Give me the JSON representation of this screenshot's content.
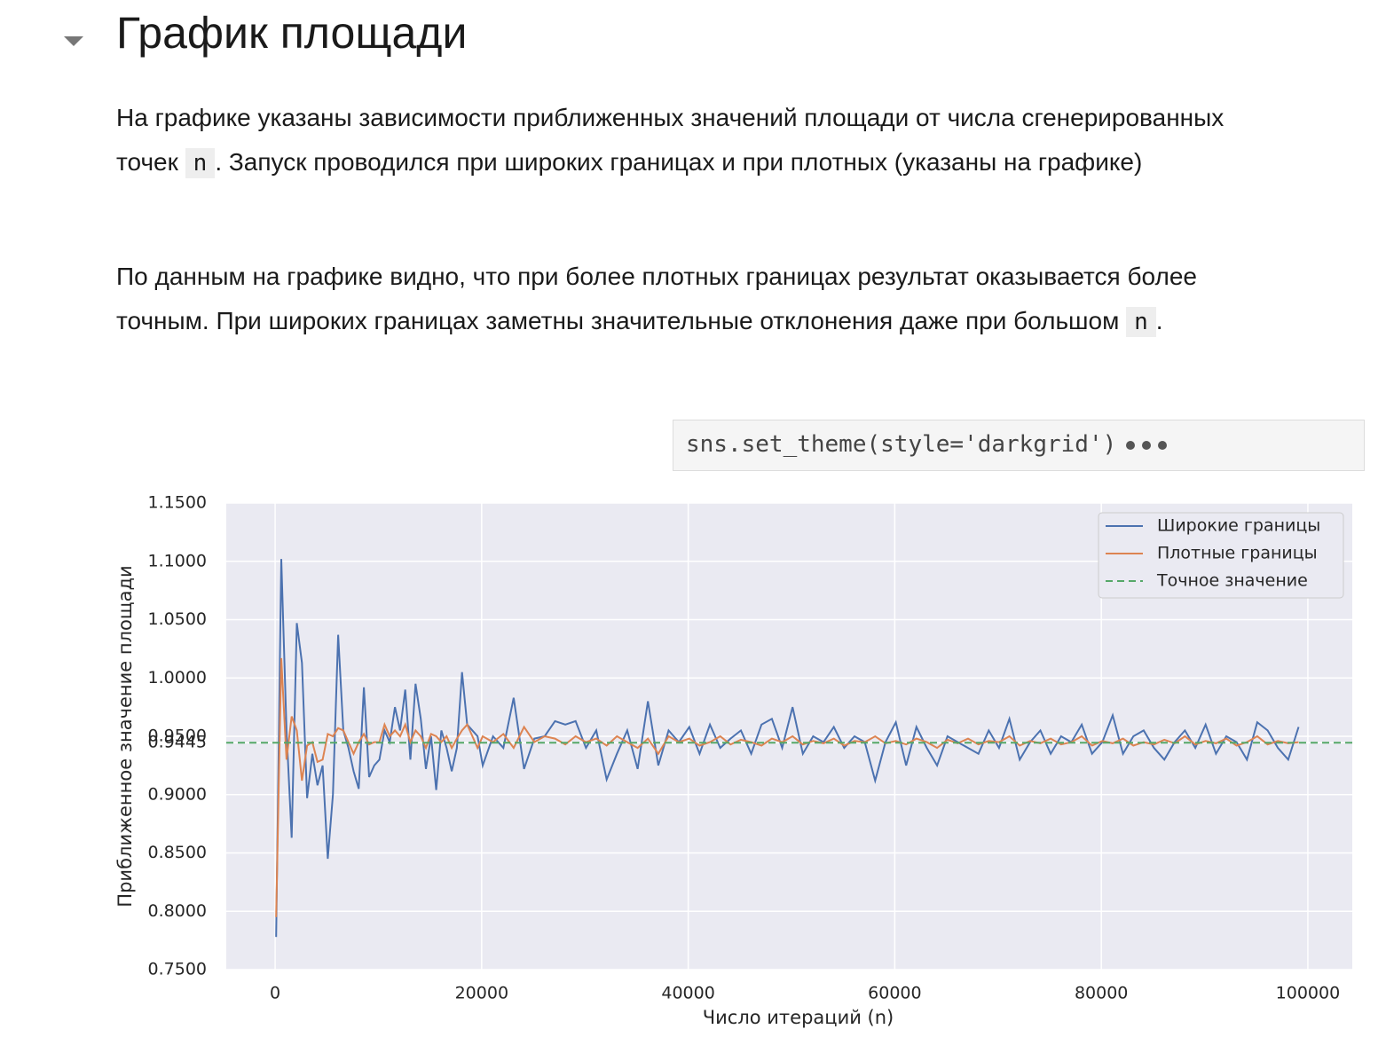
{
  "header": {
    "title": "График площади"
  },
  "paragraphs": [
    [
      "На графике указаны зависимости приближенных значений площади от числа сгенерированных точек ",
      "n",
      ". Запуск проводился при широких границах и при плотных (указаны на графике)"
    ],
    [
      "По данным на графике видно, что при более плотных границах результат оказывается более точным. При широких границах заметны значительные отклонения даже при большом ",
      "n",
      "."
    ]
  ],
  "code": "sns.set_theme(style='darkgrid')",
  "chart_data": {
    "type": "line",
    "xlabel": "Число итераций (n)",
    "ylabel": "Приближенное значение площади",
    "x": [
      100,
      600,
      1100,
      1600,
      2100,
      2600,
      3100,
      3600,
      4100,
      4600,
      5100,
      5600,
      6100,
      6600,
      7100,
      7600,
      8100,
      8600,
      9100,
      9600,
      10100,
      10600,
      11100,
      11600,
      12100,
      12600,
      13100,
      13600,
      14100,
      14600,
      15100,
      15600,
      16100,
      16600,
      17100,
      17600,
      18100,
      18600,
      19100,
      19600,
      20100,
      21100,
      22100,
      23100,
      24100,
      25100,
      26100,
      27100,
      28100,
      29100,
      30100,
      31100,
      32100,
      33100,
      34100,
      35100,
      36100,
      37100,
      38100,
      39100,
      40100,
      41100,
      42100,
      43100,
      44100,
      45100,
      46100,
      47100,
      48100,
      49100,
      50100,
      51100,
      52100,
      53100,
      54100,
      55100,
      56100,
      57100,
      58100,
      59100,
      60100,
      61100,
      62100,
      63100,
      64100,
      65100,
      66100,
      67100,
      68100,
      69100,
      70100,
      71100,
      72100,
      73100,
      74100,
      75100,
      76100,
      77100,
      78100,
      79100,
      80100,
      81100,
      82100,
      83100,
      84100,
      85100,
      86100,
      87100,
      88100,
      89100,
      90100,
      91100,
      92100,
      93100,
      94100,
      95100,
      96100,
      97100,
      98100,
      99100
    ],
    "series": [
      {
        "name": "Широкие границы",
        "color": "#4c72b0",
        "values": [
          0.778,
          1.102,
          0.955,
          0.863,
          1.047,
          1.013,
          0.897,
          0.935,
          0.908,
          0.925,
          0.845,
          0.9,
          1.037,
          0.955,
          0.94,
          0.92,
          0.905,
          0.992,
          0.915,
          0.925,
          0.93,
          0.955,
          0.945,
          0.975,
          0.955,
          0.99,
          0.93,
          0.995,
          0.965,
          0.922,
          0.95,
          0.904,
          0.955,
          0.94,
          0.92,
          0.94,
          1.005,
          0.96,
          0.955,
          0.95,
          0.925,
          0.95,
          0.94,
          0.983,
          0.922,
          0.948,
          0.95,
          0.963,
          0.96,
          0.963,
          0.94,
          0.955,
          0.913,
          0.935,
          0.955,
          0.922,
          0.98,
          0.925,
          0.955,
          0.945,
          0.958,
          0.935,
          0.96,
          0.94,
          0.948,
          0.955,
          0.935,
          0.96,
          0.965,
          0.94,
          0.975,
          0.935,
          0.95,
          0.945,
          0.958,
          0.94,
          0.95,
          0.945,
          0.912,
          0.945,
          0.962,
          0.925,
          0.958,
          0.94,
          0.925,
          0.95,
          0.945,
          0.94,
          0.935,
          0.955,
          0.94,
          0.965,
          0.93,
          0.945,
          0.955,
          0.935,
          0.95,
          0.945,
          0.96,
          0.935,
          0.945,
          0.968,
          0.935,
          0.95,
          0.955,
          0.94,
          0.93,
          0.945,
          0.955,
          0.94,
          0.96,
          0.935,
          0.95,
          0.945,
          0.93,
          0.962,
          0.955,
          0.94,
          0.93,
          0.958
        ]
      },
      {
        "name": "Плотные границы",
        "color": "#dd8452",
        "values": [
          0.795,
          1.017,
          0.93,
          0.967,
          0.955,
          0.912,
          0.942,
          0.945,
          0.928,
          0.93,
          0.952,
          0.95,
          0.957,
          0.955,
          0.945,
          0.935,
          0.945,
          0.952,
          0.943,
          0.945,
          0.945,
          0.96,
          0.95,
          0.955,
          0.95,
          0.96,
          0.945,
          0.955,
          0.95,
          0.94,
          0.952,
          0.95,
          0.945,
          0.95,
          0.94,
          0.948,
          0.955,
          0.96,
          0.95,
          0.94,
          0.95,
          0.945,
          0.952,
          0.94,
          0.958,
          0.945,
          0.95,
          0.948,
          0.943,
          0.95,
          0.945,
          0.948,
          0.942,
          0.95,
          0.945,
          0.94,
          0.948,
          0.935,
          0.95,
          0.945,
          0.948,
          0.942,
          0.945,
          0.95,
          0.943,
          0.947,
          0.945,
          0.942,
          0.948,
          0.945,
          0.95,
          0.943,
          0.946,
          0.944,
          0.948,
          0.942,
          0.946,
          0.945,
          0.95,
          0.944,
          0.946,
          0.943,
          0.948,
          0.945,
          0.94,
          0.947,
          0.944,
          0.948,
          0.943,
          0.946,
          0.945,
          0.95,
          0.942,
          0.946,
          0.944,
          0.948,
          0.943,
          0.945,
          0.95,
          0.942,
          0.946,
          0.944,
          0.948,
          0.942,
          0.945,
          0.943,
          0.947,
          0.944,
          0.95,
          0.943,
          0.946,
          0.944,
          0.948,
          0.942,
          0.945,
          0.95,
          0.943,
          0.946,
          0.944,
          0.945
        ]
      }
    ],
    "reference": {
      "name": "Точное значение",
      "value": 0.9445,
      "color": "#55a868"
    },
    "xlim": [
      -4730,
      104300
    ],
    "ylim": [
      0.75,
      1.15
    ],
    "xticks": [
      0,
      20000,
      40000,
      60000,
      80000,
      100000
    ],
    "yticks": [
      {
        "value": 0.75,
        "label": "0.7500"
      },
      {
        "value": 0.8,
        "label": "0.8000"
      },
      {
        "value": 0.85,
        "label": "0.8500"
      },
      {
        "value": 0.9,
        "label": "0.9000"
      },
      0.9445,
      {
        "value": 0.95,
        "label": "0.9500"
      },
      {
        "value": 1.0,
        "label": "1.0000"
      },
      {
        "value": 1.05,
        "label": "1.0500"
      },
      {
        "value": 1.1,
        "label": "1.1000"
      },
      {
        "value": 1.15,
        "label": "1.1500"
      }
    ],
    "grid": true,
    "legend": "upper right"
  }
}
